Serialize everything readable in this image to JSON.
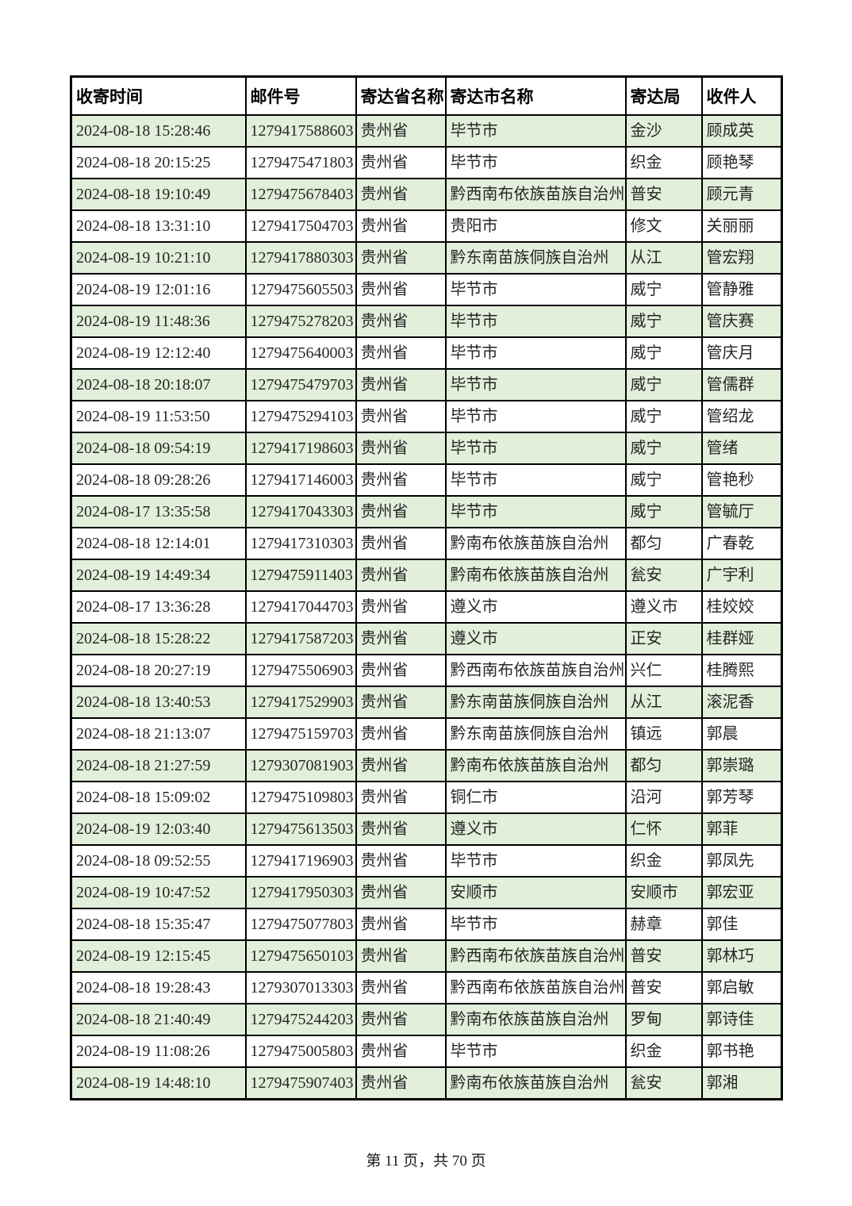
{
  "colors": {
    "row_alt_green": "#e2efda",
    "row_white": "#ffffff",
    "border": "#000000",
    "text": "#262626"
  },
  "table": {
    "columns": [
      {
        "key": "time",
        "label": "收寄时间"
      },
      {
        "key": "mail_no",
        "label": "邮件号"
      },
      {
        "key": "province",
        "label": "寄达省名称"
      },
      {
        "key": "city",
        "label": "寄达市名称"
      },
      {
        "key": "office",
        "label": "寄达局"
      },
      {
        "key": "recipient",
        "label": "收件人"
      }
    ],
    "rows": [
      {
        "time": "2024-08-18  15:28:46",
        "mail_no": "1279417588603",
        "province": "贵州省",
        "city": "毕节市",
        "office": "金沙",
        "recipient": "顾成英"
      },
      {
        "time": "2024-08-18  20:15:25",
        "mail_no": "1279475471803",
        "province": "贵州省",
        "city": "毕节市",
        "office": "织金",
        "recipient": "顾艳琴"
      },
      {
        "time": "2024-08-18  19:10:49",
        "mail_no": "1279475678403",
        "province": "贵州省",
        "city": "黔西南布依族苗族自治州",
        "office": "普安",
        "recipient": "顾元青"
      },
      {
        "time": "2024-08-18  13:31:10",
        "mail_no": "1279417504703",
        "province": "贵州省",
        "city": "贵阳市",
        "office": "修文",
        "recipient": "关丽丽"
      },
      {
        "time": "2024-08-19  10:21:10",
        "mail_no": "1279417880303",
        "province": "贵州省",
        "city": "黔东南苗族侗族自治州",
        "office": "从江",
        "recipient": "管宏翔"
      },
      {
        "time": "2024-08-19  12:01:16",
        "mail_no": "1279475605503",
        "province": "贵州省",
        "city": "毕节市",
        "office": "威宁",
        "recipient": "管静雅"
      },
      {
        "time": "2024-08-19  11:48:36",
        "mail_no": "1279475278203",
        "province": "贵州省",
        "city": "毕节市",
        "office": "威宁",
        "recipient": "管庆赛"
      },
      {
        "time": "2024-08-19  12:12:40",
        "mail_no": "1279475640003",
        "province": "贵州省",
        "city": "毕节市",
        "office": "威宁",
        "recipient": "管庆月"
      },
      {
        "time": "2024-08-18  20:18:07",
        "mail_no": "1279475479703",
        "province": "贵州省",
        "city": "毕节市",
        "office": "威宁",
        "recipient": "管儒群"
      },
      {
        "time": "2024-08-19  11:53:50",
        "mail_no": "1279475294103",
        "province": "贵州省",
        "city": "毕节市",
        "office": "威宁",
        "recipient": "管绍龙"
      },
      {
        "time": "2024-08-18  09:54:19",
        "mail_no": "1279417198603",
        "province": "贵州省",
        "city": "毕节市",
        "office": "威宁",
        "recipient": "管绪"
      },
      {
        "time": "2024-08-18  09:28:26",
        "mail_no": "1279417146003",
        "province": "贵州省",
        "city": "毕节市",
        "office": "威宁",
        "recipient": "管艳秒"
      },
      {
        "time": "2024-08-17  13:35:58",
        "mail_no": "1279417043303",
        "province": "贵州省",
        "city": "毕节市",
        "office": "威宁",
        "recipient": "管毓厅"
      },
      {
        "time": "2024-08-18  12:14:01",
        "mail_no": "1279417310303",
        "province": "贵州省",
        "city": "黔南布依族苗族自治州",
        "office": "都匀",
        "recipient": "广春乾"
      },
      {
        "time": "2024-08-19  14:49:34",
        "mail_no": "1279475911403",
        "province": "贵州省",
        "city": "黔南布依族苗族自治州",
        "office": "瓮安",
        "recipient": "广宇利"
      },
      {
        "time": "2024-08-17  13:36:28",
        "mail_no": "1279417044703",
        "province": "贵州省",
        "city": "遵义市",
        "office": "遵义市",
        "recipient": "桂姣姣"
      },
      {
        "time": "2024-08-18  15:28:22",
        "mail_no": "1279417587203",
        "province": "贵州省",
        "city": "遵义市",
        "office": "正安",
        "recipient": "桂群娅"
      },
      {
        "time": "2024-08-18  20:27:19",
        "mail_no": "1279475506903",
        "province": "贵州省",
        "city": "黔西南布依族苗族自治州",
        "office": "兴仁",
        "recipient": "桂腾熙"
      },
      {
        "time": "2024-08-18  13:40:53",
        "mail_no": "1279417529903",
        "province": "贵州省",
        "city": "黔东南苗族侗族自治州",
        "office": "从江",
        "recipient": "滚泥香"
      },
      {
        "time": "2024-08-18  21:13:07",
        "mail_no": "1279475159703",
        "province": "贵州省",
        "city": "黔东南苗族侗族自治州",
        "office": "镇远",
        "recipient": "郭晨"
      },
      {
        "time": "2024-08-18  21:27:59",
        "mail_no": "1279307081903",
        "province": "贵州省",
        "city": "黔南布依族苗族自治州",
        "office": "都匀",
        "recipient": "郭崇璐"
      },
      {
        "time": "2024-08-18  15:09:02",
        "mail_no": "1279475109803",
        "province": "贵州省",
        "city": "铜仁市",
        "office": "沿河",
        "recipient": "郭芳琴"
      },
      {
        "time": "2024-08-19  12:03:40",
        "mail_no": "1279475613503",
        "province": "贵州省",
        "city": "遵义市",
        "office": "仁怀",
        "recipient": "郭菲"
      },
      {
        "time": "2024-08-18  09:52:55",
        "mail_no": "1279417196903",
        "province": "贵州省",
        "city": "毕节市",
        "office": "织金",
        "recipient": "郭凤先"
      },
      {
        "time": "2024-08-19  10:47:52",
        "mail_no": "1279417950303",
        "province": "贵州省",
        "city": "安顺市",
        "office": "安顺市",
        "recipient": "郭宏亚"
      },
      {
        "time": "2024-08-18  15:35:47",
        "mail_no": "1279475077803",
        "province": "贵州省",
        "city": "毕节市",
        "office": "赫章",
        "recipient": "郭佳"
      },
      {
        "time": "2024-08-19  12:15:45",
        "mail_no": "1279475650103",
        "province": "贵州省",
        "city": "黔西南布依族苗族自治州",
        "office": "普安",
        "recipient": "郭林巧"
      },
      {
        "time": "2024-08-18  19:28:43",
        "mail_no": "1279307013303",
        "province": "贵州省",
        "city": "黔西南布依族苗族自治州",
        "office": "普安",
        "recipient": "郭启敏"
      },
      {
        "time": "2024-08-18  21:40:49",
        "mail_no": "1279475244203",
        "province": "贵州省",
        "city": "黔南布依族苗族自治州",
        "office": "罗甸",
        "recipient": "郭诗佳"
      },
      {
        "time": "2024-08-19  11:08:26",
        "mail_no": "1279475005803",
        "province": "贵州省",
        "city": "毕节市",
        "office": "织金",
        "recipient": "郭书艳"
      },
      {
        "time": "2024-08-19  14:48:10",
        "mail_no": "1279475907403",
        "province": "贵州省",
        "city": "黔南布依族苗族自治州",
        "office": "瓮安",
        "recipient": "郭湘"
      }
    ]
  },
  "footer": {
    "page_label": "第 11 页，共 70 页"
  }
}
